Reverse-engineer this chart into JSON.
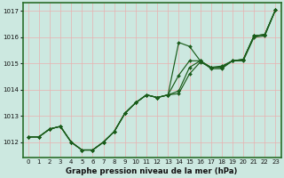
{
  "background_color": "#cce8e0",
  "grid_color": "#e8b0b0",
  "line_color": "#1a5c1a",
  "title": "Graphe pression niveau de la mer (hPa)",
  "hours": [
    0,
    1,
    2,
    3,
    4,
    5,
    6,
    7,
    8,
    9,
    10,
    11,
    12,
    13,
    14,
    15,
    16,
    17,
    18,
    19,
    20,
    21,
    22,
    23
  ],
  "ylim": [
    1011.4,
    1017.3
  ],
  "yticks": [
    1012,
    1013,
    1014,
    1015,
    1016,
    1017
  ],
  "series": [
    [
      1012.2,
      1012.2,
      1012.5,
      1012.6,
      1012.0,
      1011.7,
      1011.7,
      1012.0,
      1012.4,
      1013.1,
      1013.5,
      1013.8,
      1013.7,
      1013.8,
      1015.8,
      1015.65,
      1015.1,
      1014.8,
      1014.8,
      1015.1,
      1015.1,
      1016.0,
      1016.05,
      1017.05
    ],
    [
      1012.2,
      1012.2,
      1012.5,
      1012.6,
      1012.0,
      1011.7,
      1011.7,
      1012.0,
      1012.4,
      1013.1,
      1013.5,
      1013.8,
      1013.7,
      1013.8,
      1014.55,
      1015.1,
      1015.1,
      1014.85,
      1014.85,
      1015.1,
      1015.15,
      1016.05,
      1016.1,
      1017.05
    ],
    [
      1012.2,
      1012.2,
      1012.5,
      1012.6,
      1012.0,
      1011.7,
      1011.7,
      1012.0,
      1012.4,
      1013.1,
      1013.5,
      1013.8,
      1013.7,
      1013.8,
      1013.95,
      1014.85,
      1015.1,
      1014.85,
      1014.9,
      1015.1,
      1015.15,
      1016.05,
      1016.1,
      1017.05
    ],
    [
      1012.2,
      1012.2,
      1012.5,
      1012.6,
      1012.0,
      1011.7,
      1011.7,
      1012.0,
      1012.4,
      1013.1,
      1013.5,
      1013.8,
      1013.7,
      1013.8,
      1013.85,
      1014.6,
      1015.05,
      1014.85,
      1014.85,
      1015.1,
      1015.15,
      1016.05,
      1016.1,
      1017.05
    ]
  ],
  "spine_color": "#2a6e2a",
  "tick_fontsize": 5.0,
  "title_fontsize": 6.2,
  "linewidth": 0.85,
  "markersize": 2.0
}
